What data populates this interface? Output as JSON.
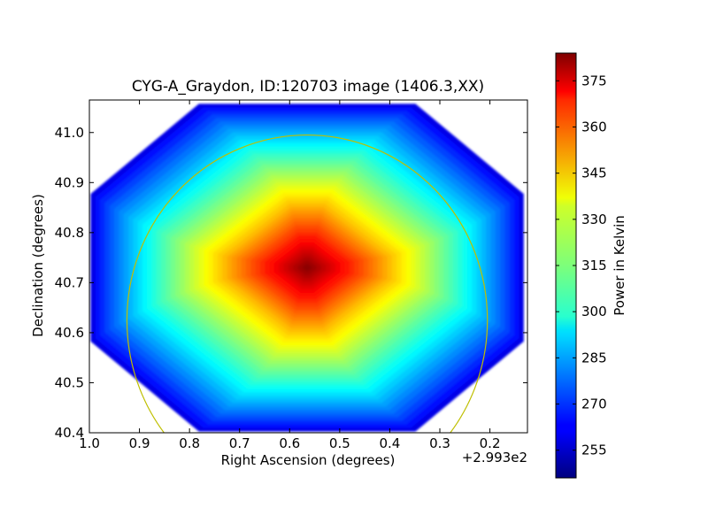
{
  "chart_data": {
    "type": "heatmap",
    "title": "CYG-A_Graydon, ID:120703 image (1406.3,XX)",
    "xlabel": "Right Ascension (degrees)",
    "ylabel": "Declination (degrees)",
    "x_offset_label": "+2.993e2",
    "xlim": [
      1.0,
      0.125
    ],
    "ylim": [
      40.4,
      41.065
    ],
    "x_ticks": [
      1.0,
      0.9,
      0.8,
      0.7,
      0.6,
      0.5,
      0.4,
      0.3,
      0.2
    ],
    "x_tick_labels": [
      "1.0",
      "0.9",
      "0.8",
      "0.7",
      "0.6",
      "0.5",
      "0.4",
      "0.3",
      "0.2"
    ],
    "y_ticks": [
      40.4,
      40.5,
      40.6,
      40.7,
      40.8,
      40.9,
      41.0
    ],
    "y_tick_labels": [
      "40.4",
      "40.5",
      "40.6",
      "40.7",
      "40.8",
      "40.9",
      "41.0"
    ],
    "colorbar": {
      "label": "Power in Kelvin",
      "colormap": "jet",
      "range": [
        246,
        384
      ],
      "ticks": [
        255,
        270,
        285,
        300,
        315,
        330,
        345,
        360,
        375
      ],
      "tick_labels": [
        "255",
        "270",
        "285",
        "300",
        "315",
        "330",
        "345",
        "360",
        "375"
      ]
    },
    "map": {
      "shape": "diamond",
      "center": [
        0.565,
        40.73
      ],
      "corners": {
        "top": [
          0.565,
          41.065
        ],
        "bottom": [
          0.565,
          40.41
        ],
        "left": [
          0.99,
          40.72
        ],
        "right": [
          0.125,
          40.72
        ]
      },
      "peak_value": 382,
      "edge_value": 260
    },
    "beam_circle": {
      "center": [
        0.565,
        40.625
      ],
      "radius_ra": 0.36,
      "radius_dec": 0.37,
      "color": "#bfbf00"
    }
  }
}
